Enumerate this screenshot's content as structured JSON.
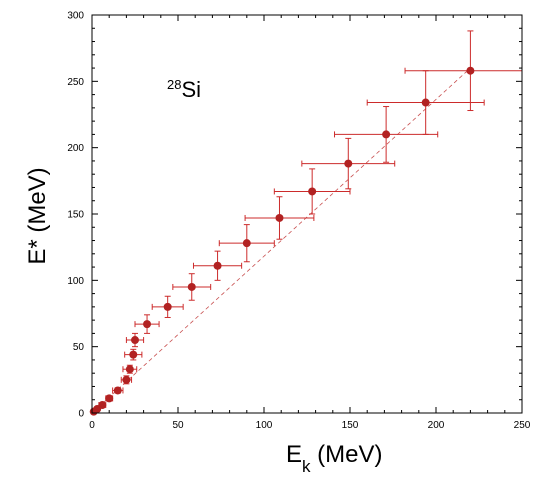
{
  "chart_data": {
    "type": "scatter",
    "xlabel_main": "E",
    "xlabel_sub": "k",
    "xlabel_rest": " (MeV)",
    "ylabel": "E* (MeV)",
    "annotation_mass": "28",
    "annotation_symbol": "Si",
    "xlim": [
      0,
      250
    ],
    "ylim": [
      0,
      300
    ],
    "x_ticks": [
      0,
      50,
      100,
      150,
      200,
      250
    ],
    "y_ticks": [
      0,
      50,
      100,
      150,
      200,
      250,
      300
    ],
    "grid": false,
    "reference_line": {
      "style": "dashed",
      "from": [
        0,
        0
      ],
      "to": [
        220,
        260
      ]
    },
    "colors": {
      "points": "#b22222",
      "errorbars": "#cc2b2b",
      "refline": "#c85050",
      "axes": "#000000"
    },
    "points": [
      {
        "x": 1,
        "y": 1,
        "xerr": 1,
        "yerr": 1
      },
      {
        "x": 3,
        "y": 3,
        "xerr": 1,
        "yerr": 1
      },
      {
        "x": 6,
        "y": 6,
        "xerr": 2,
        "yerr": 1
      },
      {
        "x": 10,
        "y": 11,
        "xerr": 2,
        "yerr": 2
      },
      {
        "x": 15,
        "y": 17,
        "xerr": 3,
        "yerr": 2
      },
      {
        "x": 20,
        "y": 25,
        "xerr": 3,
        "yerr": 3
      },
      {
        "x": 22,
        "y": 33,
        "xerr": 4,
        "yerr": 3
      },
      {
        "x": 24,
        "y": 44,
        "xerr": 5,
        "yerr": 4
      },
      {
        "x": 25,
        "y": 55,
        "xerr": 5,
        "yerr": 5
      },
      {
        "x": 32,
        "y": 67,
        "xerr": 7,
        "yerr": 7
      },
      {
        "x": 44,
        "y": 80,
        "xerr": 9,
        "yerr": 8
      },
      {
        "x": 58,
        "y": 95,
        "xerr": 11,
        "yerr": 10
      },
      {
        "x": 73,
        "y": 111,
        "xerr": 14,
        "yerr": 11
      },
      {
        "x": 90,
        "y": 128,
        "xerr": 16,
        "yerr": 14
      },
      {
        "x": 109,
        "y": 147,
        "xerr": 20,
        "yerr": 16
      },
      {
        "x": 128,
        "y": 167,
        "xerr": 22,
        "yerr": 17
      },
      {
        "x": 149,
        "y": 188,
        "xerr": 27,
        "yerr": 19
      },
      {
        "x": 171,
        "y": 210,
        "xerr": 30,
        "yerr": 21
      },
      {
        "x": 194,
        "y": 234,
        "xerr": 34,
        "yerr": 24
      },
      {
        "x": 220,
        "y": 258,
        "xerr": 38,
        "yerr": 30
      }
    ]
  }
}
